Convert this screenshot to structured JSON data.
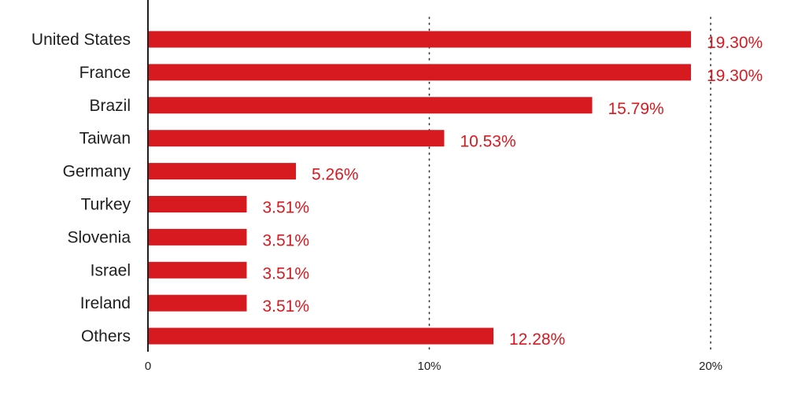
{
  "chart_data": {
    "type": "bar",
    "orientation": "horizontal",
    "categories": [
      "United States",
      "France",
      "Brazil",
      "Taiwan",
      "Germany",
      "Turkey",
      "Slovenia",
      "Israel",
      "Ireland",
      "Others"
    ],
    "values": [
      19.3,
      19.3,
      15.79,
      10.53,
      5.26,
      3.51,
      3.51,
      3.51,
      3.51,
      12.28
    ],
    "value_labels": [
      "19.30%",
      "19.30%",
      "15.79%",
      "10.53%",
      "5.26%",
      "3.51%",
      "3.51%",
      "3.51%",
      "3.51%",
      "12.28%"
    ],
    "xlim": [
      0,
      20
    ],
    "xticks": [
      0,
      10,
      20
    ],
    "xtick_labels": [
      "0",
      "10%",
      "20%"
    ],
    "grid": "vertical dotted at 10% and 20%",
    "title": "",
    "xlabel": "",
    "ylabel": ""
  },
  "colors": {
    "bar": "#d71920",
    "value_text": "#d71920",
    "axis": "#1f1f1f",
    "grid": "#333333"
  }
}
